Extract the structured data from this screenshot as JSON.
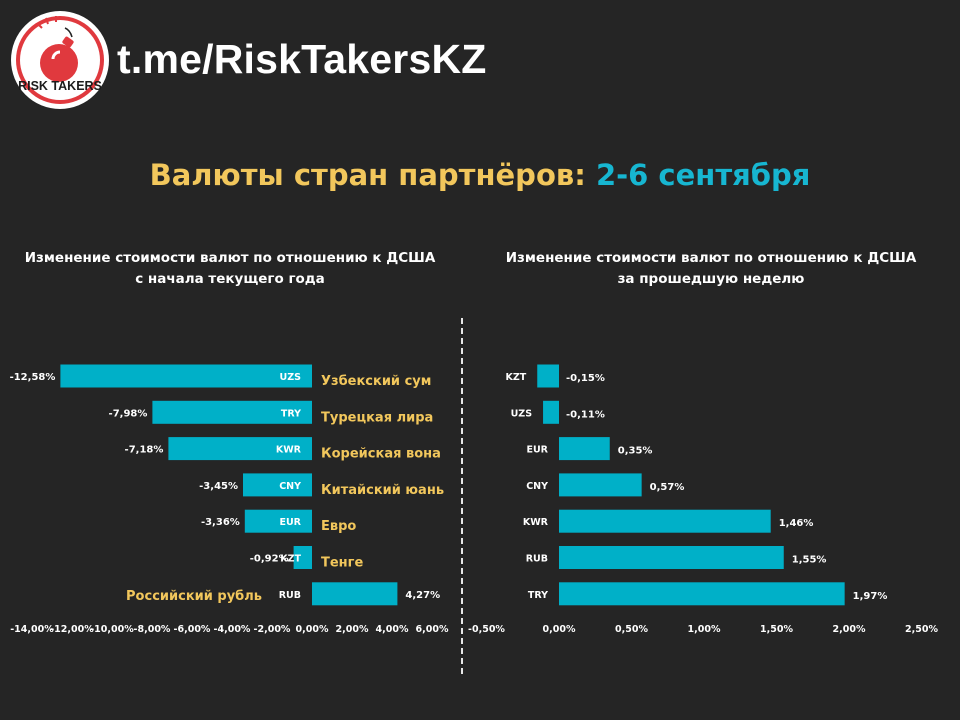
{
  "header": {
    "logo_text": "RISK TAKERS",
    "brand": "t.me/RiskTakersKZ",
    "title_part1": "Валюты стран партнёров:",
    "title_part2": "2-6 сентября"
  },
  "colors": {
    "bar": "#00b0c8",
    "accent_yellow": "#f2c75c",
    "accent_teal": "#17b6d1",
    "background": "#252525",
    "logo_red": "#e0393e"
  },
  "chart_data": [
    {
      "type": "bar",
      "orientation": "horizontal",
      "title_line1": "Изменение стоимости валют по отношению к ДСША",
      "title_line2": "с начала текущего года",
      "categories": [
        "UZS",
        "TRY",
        "KWR",
        "CNY",
        "EUR",
        "KZT",
        "RUB"
      ],
      "currency_names": [
        "Узбекский сум",
        "Турецкая лира",
        "Корейская вона",
        "Китайский юань",
        "Евро",
        "Тенге",
        "Российский рубль"
      ],
      "values": [
        -12.58,
        -7.98,
        -7.18,
        -3.45,
        -3.36,
        -0.92,
        4.27
      ],
      "value_labels": [
        "-12,58%",
        "-7,98%",
        "-7,18%",
        "-3,45%",
        "-3,36%",
        "-0,92%",
        "4,27%"
      ],
      "xlim": [
        -14,
        6
      ],
      "ticks": [
        -14,
        -12,
        -10,
        -8,
        -6,
        -4,
        -2,
        0,
        2,
        4,
        6
      ],
      "tick_labels": [
        "-14,00%",
        "-12,00%",
        "-10,00%",
        "-8,00%",
        "-6,00%",
        "-4,00%",
        "-2,00%",
        "0,00%",
        "2,00%",
        "4,00%",
        "6,00%"
      ],
      "grid": false
    },
    {
      "type": "bar",
      "orientation": "horizontal",
      "title_line1": "Изменение стоимости валют по отношению к ДСША",
      "title_line2": "за прошедшую неделю",
      "categories": [
        "KZT",
        "UZS",
        "EUR",
        "CNY",
        "KWR",
        "RUB",
        "TRY"
      ],
      "values": [
        -0.15,
        -0.11,
        0.35,
        0.57,
        1.46,
        1.55,
        1.97
      ],
      "value_labels": [
        "-0,15%",
        "-0,11%",
        "0,35%",
        "0,57%",
        "1,46%",
        "1,55%",
        "1,97%"
      ],
      "xlim": [
        -0.5,
        2.5
      ],
      "ticks": [
        -0.5,
        0,
        0.5,
        1.0,
        1.5,
        2.0,
        2.5
      ],
      "tick_labels": [
        "-0,50%",
        "0,00%",
        "0,50%",
        "1,00%",
        "1,50%",
        "2,00%",
        "2,50%"
      ],
      "grid": false
    }
  ]
}
